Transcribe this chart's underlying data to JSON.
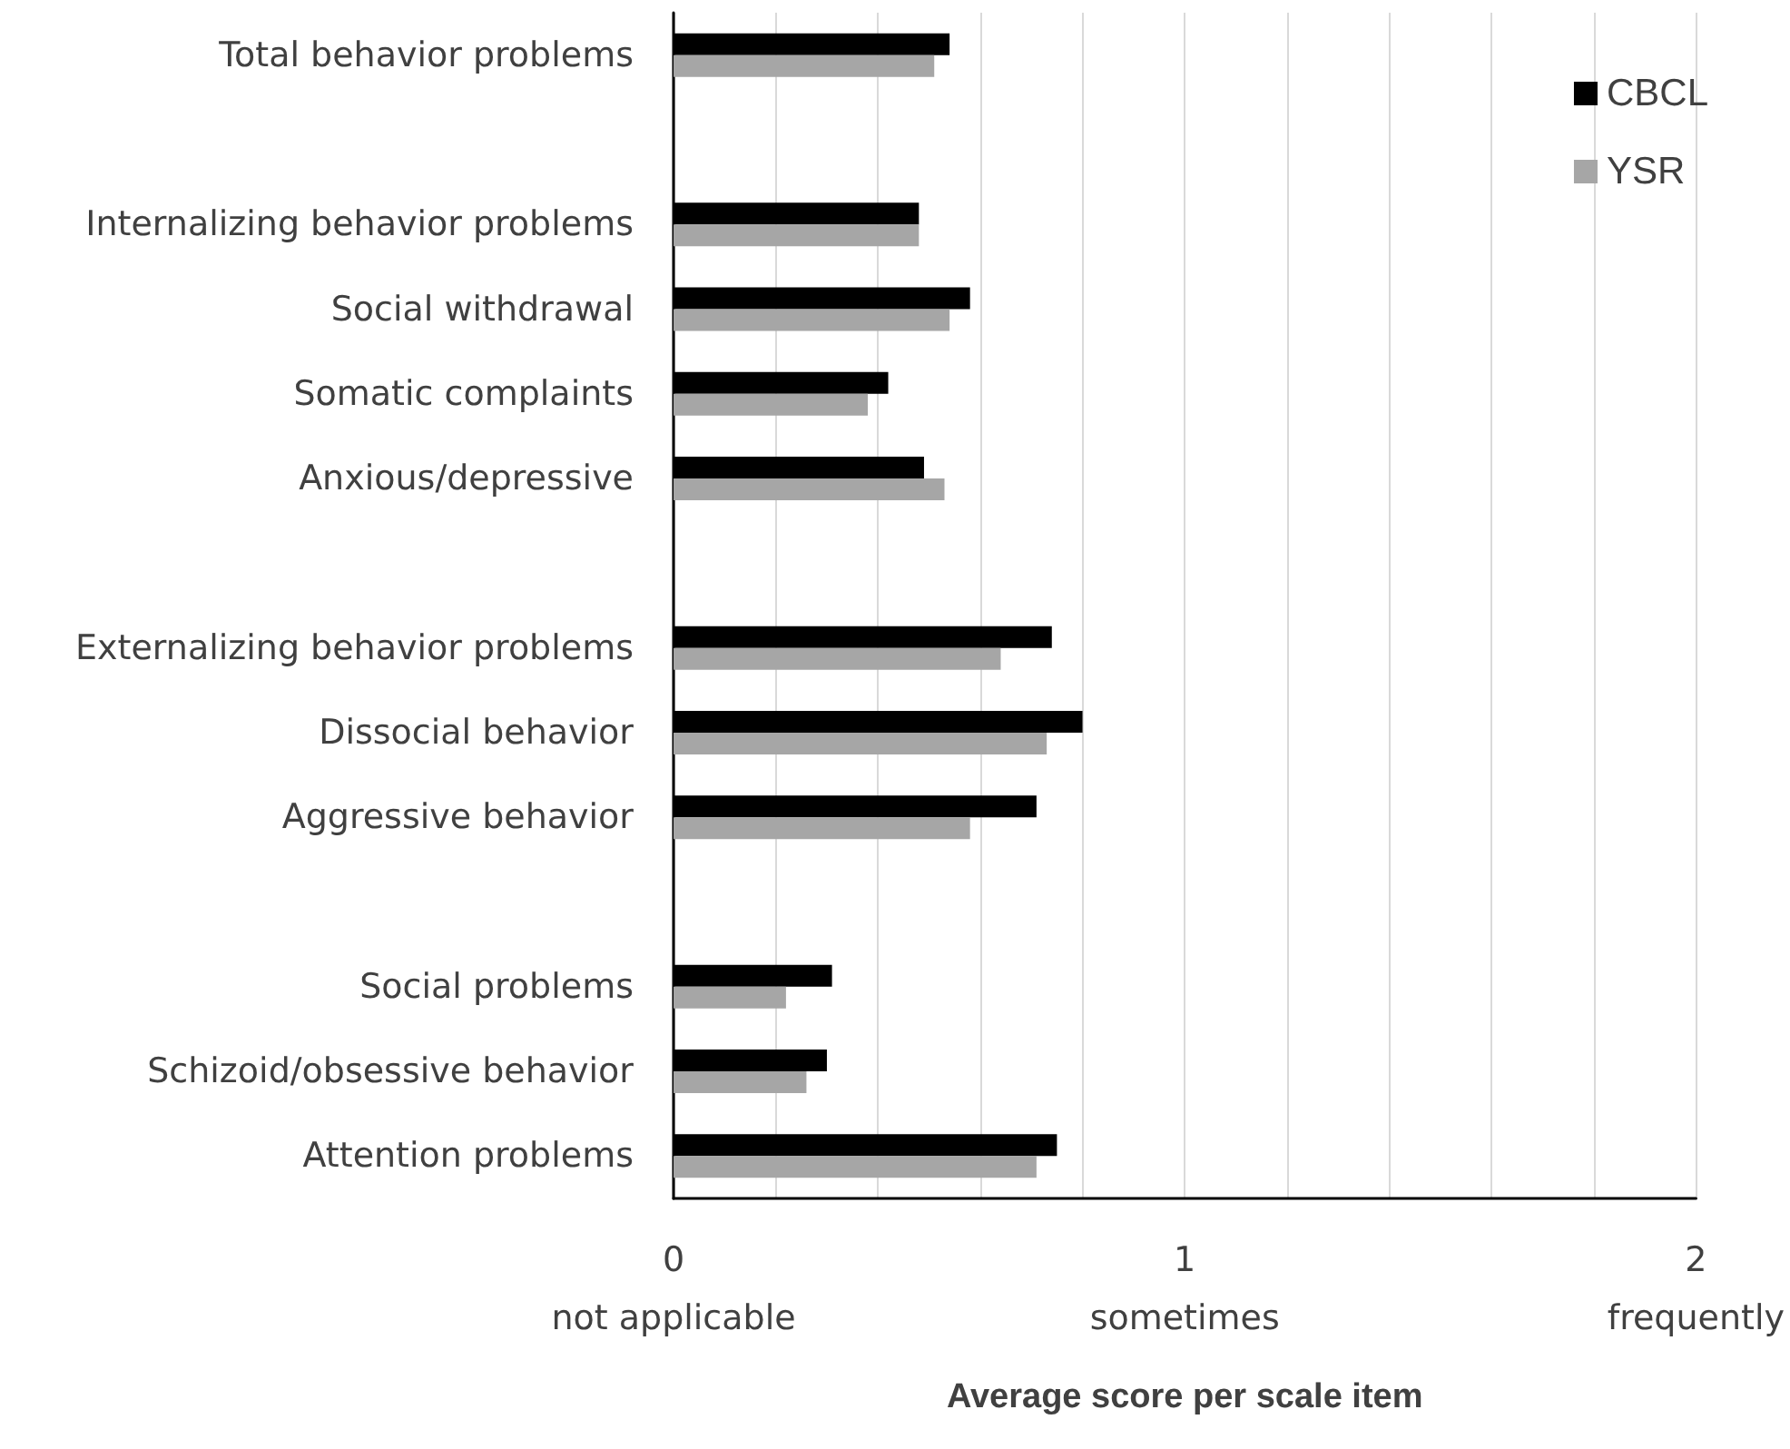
{
  "chart_data": {
    "type": "bar",
    "orientation": "horizontal",
    "xlabel": "Average score per scale item",
    "categories": [
      "Total behavior problems",
      null,
      "Internalizing behavior problems",
      "Social withdrawal",
      "Somatic complaints",
      "Anxious/depressive",
      null,
      "Externalizing behavior problems",
      "Dissocial behavior",
      "Aggressive behavior",
      null,
      "Social problems",
      "Schizoid/obsessive behavior",
      "Attention problems"
    ],
    "series": [
      {
        "name": "CBCL",
        "color": "#000000",
        "values": [
          0.54,
          null,
          0.48,
          0.58,
          0.42,
          0.49,
          null,
          0.74,
          0.8,
          0.71,
          null,
          0.31,
          0.3,
          0.75
        ]
      },
      {
        "name": "YSR",
        "color": "#a6a6a6",
        "values": [
          0.51,
          null,
          0.48,
          0.54,
          0.38,
          0.53,
          null,
          0.64,
          0.73,
          0.58,
          null,
          0.22,
          0.26,
          0.71
        ]
      }
    ],
    "xlim": [
      0,
      2
    ],
    "xticks": [
      {
        "value": 0,
        "label": "0\nnot applicable"
      },
      {
        "value": 0.2,
        "label": null
      },
      {
        "value": 0.4,
        "label": null
      },
      {
        "value": 0.6,
        "label": null
      },
      {
        "value": 0.8,
        "label": null
      },
      {
        "value": 1,
        "label": "1\nsometimes"
      },
      {
        "value": 1.2,
        "label": null
      },
      {
        "value": 1.4,
        "label": null
      },
      {
        "value": 1.6,
        "label": null
      },
      {
        "value": 1.8,
        "label": null
      },
      {
        "value": 2,
        "label": "2\nfrequently"
      }
    ],
    "grid": "x",
    "legend": "top right"
  }
}
